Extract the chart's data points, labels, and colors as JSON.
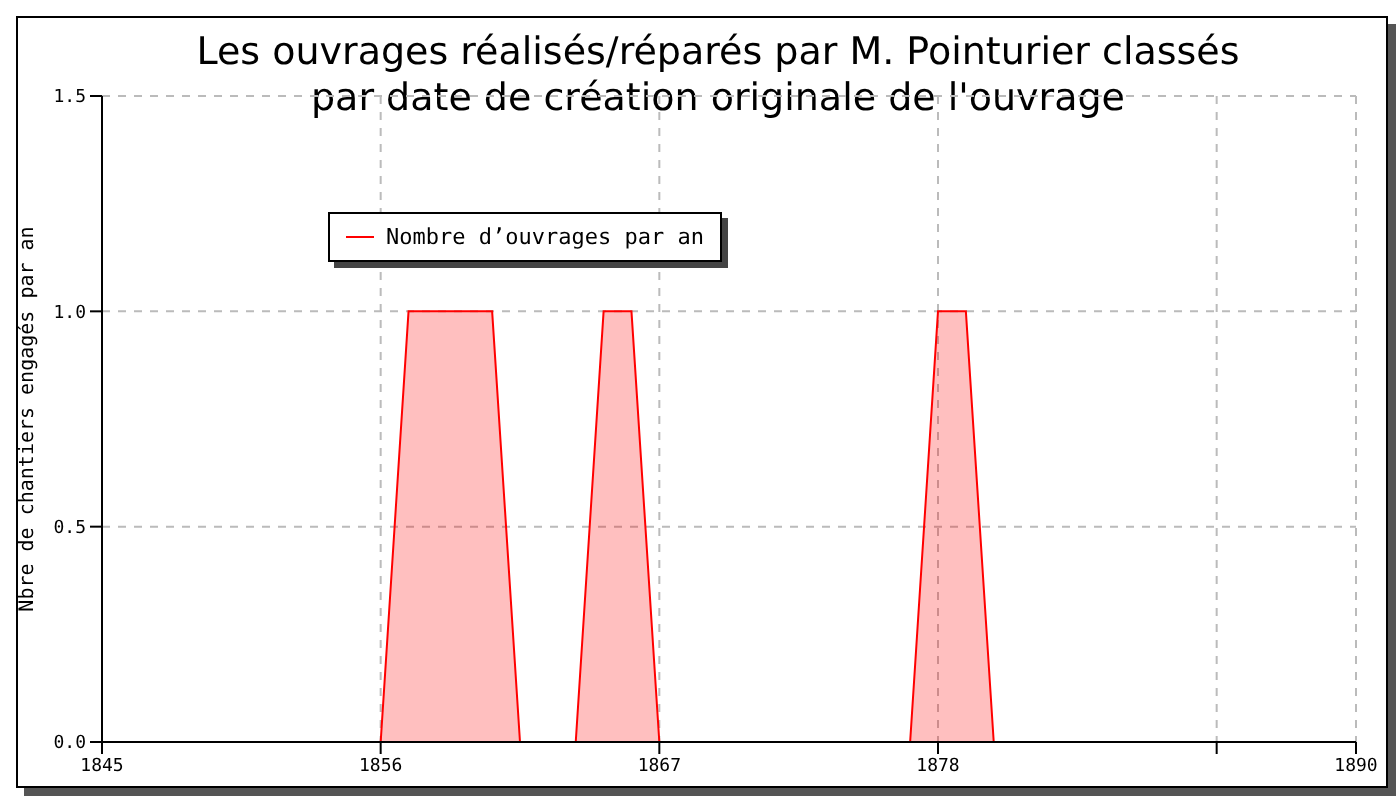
{
  "chart_data": {
    "type": "area",
    "title": "Les ouvrages réalisés/réparés par M. Pointurier classés par date de création originale de l'ouvrage",
    "ylabel": "Nbre de chantiers engagés par an",
    "categories": [
      "1845",
      null,
      null,
      null,
      null,
      null,
      null,
      null,
      null,
      null,
      "1856",
      null,
      null,
      null,
      null,
      null,
      null,
      null,
      null,
      null,
      "1867",
      null,
      null,
      null,
      null,
      null,
      null,
      null,
      null,
      null,
      "1878",
      null,
      null,
      null,
      null,
      null,
      null,
      null,
      null,
      null,
      null,
      null,
      null,
      null,
      null,
      "1890"
    ],
    "series": [
      {
        "name": "Nombre d’ouvrages par an",
        "color": "#ff0000",
        "values": [
          0,
          0,
          0,
          0,
          0,
          0,
          0,
          0,
          0,
          0,
          0,
          1,
          1,
          1,
          1,
          0,
          0,
          0,
          1,
          1,
          0,
          0,
          0,
          0,
          0,
          0,
          0,
          0,
          0,
          0,
          1,
          1,
          0,
          0,
          0,
          0,
          0,
          0,
          0,
          0,
          0,
          0,
          0,
          0,
          0,
          0
        ]
      }
    ],
    "ylim": [
      0,
      1.5
    ],
    "yticks": [
      {
        "value": 0,
        "label": "0.0"
      },
      0.5,
      {
        "value": 1,
        "label": "1.0"
      },
      1.5
    ],
    "grid": true,
    "legend": "top left",
    "line_style": "solid",
    "marker": "none"
  }
}
